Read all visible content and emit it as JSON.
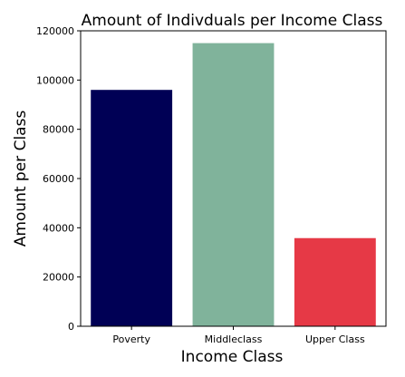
{
  "chart_data": {
    "type": "bar",
    "title": "Amount of Indivduals per Income Class",
    "xlabel": "Income Class",
    "ylabel": "Amount per Class",
    "categories": [
      "Poverty",
      "Middleclass",
      "Upper Class"
    ],
    "values": [
      96000,
      115000,
      35800
    ],
    "colors": [
      "#000055",
      "#80b39b",
      "#e63946"
    ],
    "ylim": [
      0,
      120000
    ],
    "yticks": [
      0,
      20000,
      40000,
      60000,
      80000,
      100000,
      120000
    ],
    "ytick_labels": [
      "0",
      "20000",
      "40000",
      "60000",
      "80000",
      "100000",
      "120000"
    ],
    "grid": false,
    "legend": "none"
  }
}
